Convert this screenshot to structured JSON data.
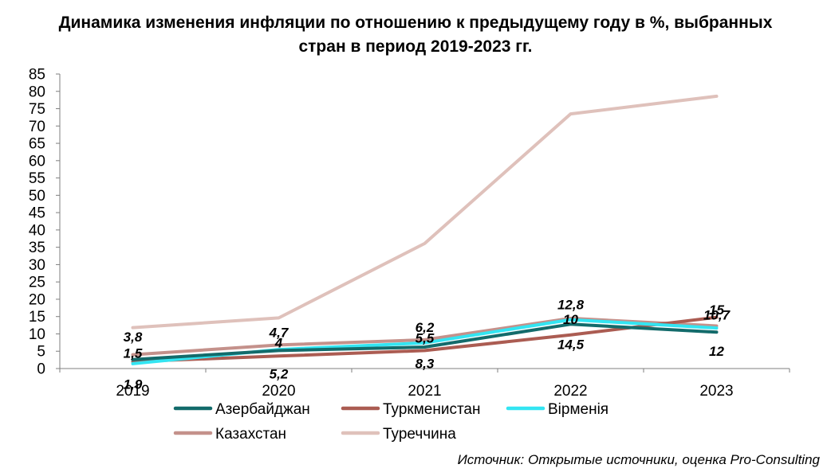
{
  "title_line1": "Динамика изменения инфляции по отношению к предыдущему году в %, выбранных",
  "title_line2": "стран в период 2019-2023 гг.",
  "source": "Источник: Открытые источники, оценка Pro-Consulting",
  "chart_data": {
    "type": "line",
    "title": "Динамика изменения инфляции по отношению к предыдущему году в %, выбранных стран в период 2019-2023 гг.",
    "xlabel": "",
    "ylabel": "",
    "categories": [
      "2019",
      "2020",
      "2021",
      "2022",
      "2023"
    ],
    "ylim": [
      0,
      85
    ],
    "yticks": [
      0,
      5,
      10,
      15,
      20,
      25,
      30,
      35,
      40,
      45,
      50,
      55,
      60,
      65,
      70,
      75,
      80,
      85
    ],
    "grid": false,
    "legend_position": "bottom",
    "series": [
      {
        "name": "Азербайджан",
        "color": "#136b6b",
        "values": [
          2.6,
          5.2,
          6.2,
          12.8,
          10.5
        ]
      },
      {
        "name": "Туркменистан",
        "color": "#ab5c52",
        "values": [
          2.0,
          3.6,
          5.2,
          9.7,
          14.8
        ]
      },
      {
        "name": "Вірменія",
        "color": "#33e5f2",
        "values": [
          1.4,
          5.5,
          7.4,
          14.1,
          11.7
        ]
      },
      {
        "name": "Казахстан",
        "color": "#c4918b",
        "values": [
          4.0,
          6.8,
          8.3,
          14.5,
          12.3
        ]
      },
      {
        "name": "Туреччина",
        "color": "#dfc1bb",
        "values": [
          11.8,
          14.6,
          36.1,
          73.5,
          78.6
        ]
      }
    ],
    "data_labels": [
      {
        "text": "3,8",
        "x": "2019",
        "y": 9.2
      },
      {
        "text": "1,5",
        "x": "2019",
        "y": 4.5
      },
      {
        "text": "1,9",
        "x": "2019",
        "y": -4.5
      },
      {
        "text": "4,7",
        "x": "2020",
        "y": 10.5
      },
      {
        "text": "4",
        "x": "2020",
        "y": 7.5
      },
      {
        "text": "5,2",
        "x": "2020",
        "y": -1.5
      },
      {
        "text": "6,2",
        "x": "2021",
        "y": 12.0
      },
      {
        "text": "5,5",
        "x": "2021",
        "y": 8.8
      },
      {
        "text": "8,3",
        "x": "2021",
        "y": 1.5
      },
      {
        "text": "12,8",
        "x": "2022",
        "y": 18.5
      },
      {
        "text": "10",
        "x": "2022",
        "y": 14.2
      },
      {
        "text": "14,5",
        "x": "2022",
        "y": 7.0
      },
      {
        "text": "15",
        "x": "2023",
        "y": 17.0
      },
      {
        "text": "10,7",
        "x": "2023",
        "y": 15.5
      },
      {
        "text": "12",
        "x": "2023",
        "y": 5.0
      }
    ]
  }
}
